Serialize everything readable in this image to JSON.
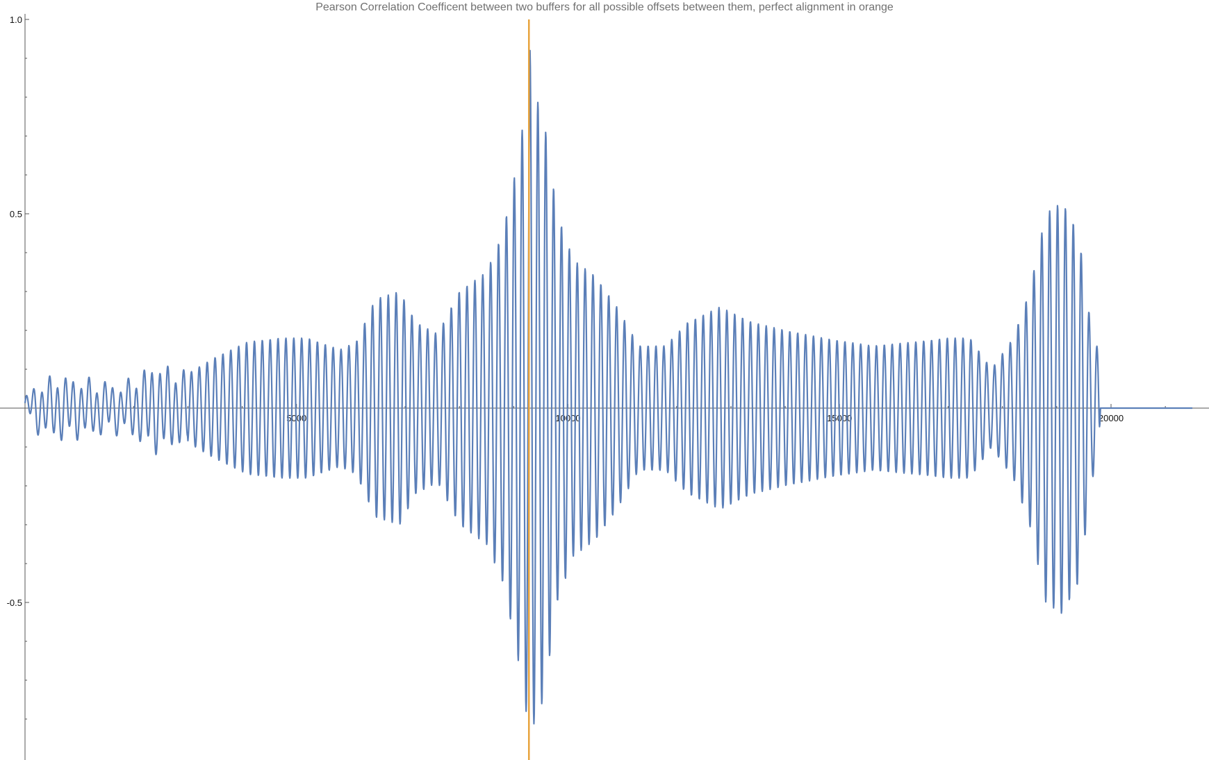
{
  "chart_data": {
    "type": "line",
    "title": "Pearson Correlation Coefficent between two buffers for all possible offsets between them, perfect alignment in orange",
    "xlabel": "",
    "ylabel": "",
    "xlim": [
      -400,
      22000
    ],
    "ylim": [
      -0.9,
      1.0
    ],
    "x_ticks": [
      5000,
      10000,
      15000,
      20000
    ],
    "x_tick_labels": [
      "5000",
      "10000",
      "15000",
      "20000"
    ],
    "y_ticks": [
      -0.5,
      0.5,
      1.0
    ],
    "y_tick_labels": [
      "-0.5",
      "0.5",
      "1.0"
    ],
    "grid": false,
    "legend": "none",
    "series": [
      {
        "color": "#5B7FB8",
        "description_period_x": 145,
        "envelope": [
          [
            0,
            0.02
          ],
          [
            200,
            0.05
          ],
          [
            600,
            0.07
          ],
          [
            1200,
            0.06
          ],
          [
            1800,
            0.05
          ],
          [
            2400,
            0.1
          ],
          [
            2900,
            0.08
          ],
          [
            3500,
            0.13
          ],
          [
            4100,
            0.17
          ],
          [
            4700,
            0.18
          ],
          [
            5200,
            0.18
          ],
          [
            5800,
            0.15
          ],
          [
            6100,
            0.17
          ],
          [
            6450,
            0.28
          ],
          [
            6900,
            0.3
          ],
          [
            7200,
            0.22
          ],
          [
            7600,
            0.19
          ],
          [
            8000,
            0.3
          ],
          [
            8500,
            0.35
          ],
          [
            8800,
            0.45
          ],
          [
            9050,
            0.62
          ],
          [
            9250,
            0.8
          ],
          [
            9300,
            0.92
          ],
          [
            9350,
            0.82
          ],
          [
            9550,
            0.75
          ],
          [
            9800,
            0.5
          ],
          [
            10100,
            0.38
          ],
          [
            10500,
            0.34
          ],
          [
            10900,
            0.26
          ],
          [
            11300,
            0.16
          ],
          [
            11800,
            0.16
          ],
          [
            12200,
            0.22
          ],
          [
            12800,
            0.26
          ],
          [
            13400,
            0.22
          ],
          [
            14000,
            0.2
          ],
          [
            14700,
            0.18
          ],
          [
            15600,
            0.16
          ],
          [
            16400,
            0.17
          ],
          [
            17000,
            0.18
          ],
          [
            17400,
            0.18
          ],
          [
            17800,
            0.1
          ],
          [
            18200,
            0.18
          ],
          [
            18500,
            0.3
          ],
          [
            18800,
            0.5
          ],
          [
            19100,
            0.53
          ],
          [
            19400,
            0.45
          ],
          [
            19550,
            0.3
          ],
          [
            19650,
            0.18
          ],
          [
            19780,
            0.15
          ],
          [
            19800,
            0.02
          ],
          [
            19850,
            0.0
          ],
          [
            21500,
            0.0
          ]
        ],
        "end_x": 21500
      },
      {
        "name": "perfect alignment",
        "color": "#E8A33D",
        "type": "vline",
        "x": 9280
      }
    ]
  }
}
